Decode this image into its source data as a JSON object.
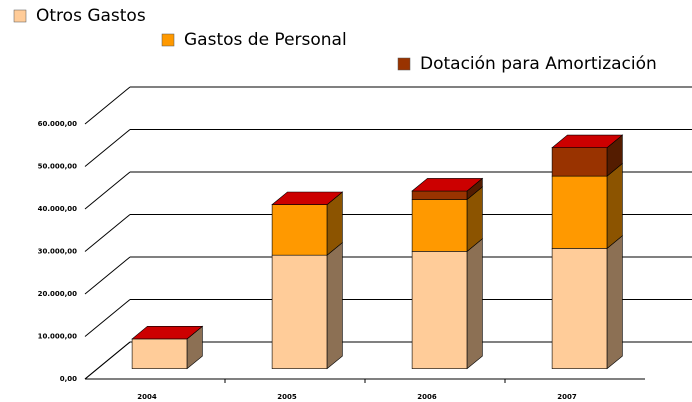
{
  "chart_data": {
    "type": "bar3d_stacked",
    "categories": [
      "2004",
      "2005",
      "2006",
      "2007"
    ],
    "series": [
      {
        "name": "Otros Gastos",
        "color": "#ffcc99",
        "values": [
          7000,
          26700,
          27600,
          28300
        ]
      },
      {
        "name": "Gastos de Personal",
        "color": "#ff9900",
        "values": [
          0,
          11900,
          12200,
          17000
        ]
      },
      {
        "name": "Dotación para Amortización",
        "color": "#993300",
        "values": [
          0,
          0,
          2000,
          6700
        ]
      }
    ],
    "ylim": [
      0,
      60000
    ],
    "yticks": [
      {
        "value": 0,
        "label": "0,00"
      },
      {
        "value": 10000,
        "label": "10.000,00"
      },
      {
        "value": 20000,
        "label": "20.000,00"
      },
      {
        "value": 30000,
        "label": "30.000,00"
      },
      {
        "value": 40000,
        "label": "40.000,00"
      },
      {
        "value": 50000,
        "label": "50.000,00"
      },
      {
        "value": 60000,
        "label": "60.000,00"
      }
    ],
    "grid": true
  }
}
